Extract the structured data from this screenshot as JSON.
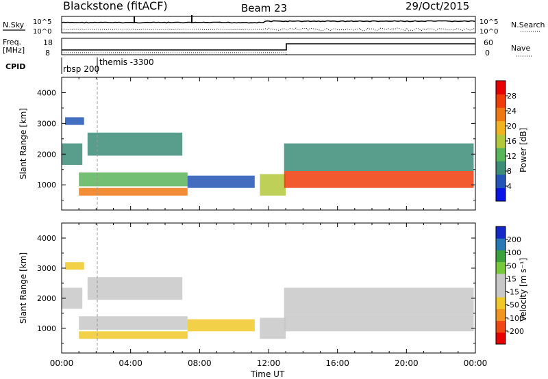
{
  "header": {
    "station": "Blackstone (fitACF)",
    "beam": "Beam 23",
    "date": "29/Oct/2015"
  },
  "noise_panel": {
    "left_label": "N.Sky",
    "left_ticks": [
      "10^5",
      "10^0"
    ],
    "right_label": "N.Search",
    "right_ticks": [
      "10^5",
      "10^0"
    ]
  },
  "freq_panel": {
    "left_label": "Freq.",
    "left_unit": "[MHz]",
    "left_ticks": [
      "18",
      "8"
    ],
    "right_label": "Nave",
    "right_ticks": [
      "60",
      "0"
    ]
  },
  "cpid": {
    "label": "CPID",
    "items": [
      "rbsp 200",
      "themis -3300"
    ]
  },
  "x_axis": {
    "label": "Time UT",
    "ticks": [
      "00:00",
      "04:00",
      "08:00",
      "12:00",
      "16:00",
      "20:00",
      "00:00"
    ]
  },
  "colors": {
    "power": [
      "#0a14e6",
      "#2255b4",
      "#3c8c78",
      "#5ab45a",
      "#b4c83c",
      "#f0b41e",
      "#f07814",
      "#f03c0a",
      "#e60000"
    ],
    "velocity": [
      "#e60000",
      "#f04614",
      "#f0961e",
      "#f0c828",
      "#c8c8c8",
      "#c8c8c8",
      "#78c83c",
      "#3ca03c",
      "#2878b4",
      "#1428c8"
    ]
  },
  "chart_data": [
    {
      "type": "heatmap",
      "quantity": "Power",
      "ylabel": "Slant Range [km]",
      "xlabel": "Time UT",
      "x_range_hours": [
        0,
        24
      ],
      "ylim": [
        180,
        4500
      ],
      "y_ticks": [
        "4000",
        "3000",
        "2000",
        "1000"
      ],
      "colorbar": {
        "label": "Power [dB]",
        "ticks": [
          "28",
          "24",
          "20",
          "16",
          "12",
          "8",
          "4"
        ],
        "range": [
          0,
          30
        ]
      },
      "bands": [
        {
          "t0": 0.0,
          "t1": 1.2,
          "r0": 1650,
          "r1": 2350,
          "value": 9
        },
        {
          "t0": 0.2,
          "t1": 1.3,
          "r0": 2950,
          "r1": 3200,
          "value": 6
        },
        {
          "t0": 1.0,
          "t1": 7.3,
          "r0": 650,
          "r1": 900,
          "value": 23
        },
        {
          "t0": 1.0,
          "t1": 7.3,
          "r0": 950,
          "r1": 1400,
          "value": 13
        },
        {
          "t0": 1.5,
          "t1": 7.0,
          "r0": 1950,
          "r1": 2700,
          "value": 7
        },
        {
          "t0": 7.3,
          "t1": 11.2,
          "r0": 900,
          "r1": 1300,
          "value": 6
        },
        {
          "t0": 11.5,
          "t1": 13.0,
          "r0": 650,
          "r1": 1350,
          "value": 14
        },
        {
          "t0": 12.9,
          "t1": 23.9,
          "r0": 900,
          "r1": 1450,
          "value": 26
        },
        {
          "t0": 12.9,
          "t1": 23.9,
          "r0": 1450,
          "r1": 2350,
          "value": 9
        }
      ]
    },
    {
      "type": "heatmap",
      "quantity": "Velocity",
      "ylabel": "Slant Range [km]",
      "xlabel": "Time UT",
      "x_range_hours": [
        0,
        24
      ],
      "ylim": [
        180,
        4500
      ],
      "y_ticks": [
        "4000",
        "3000",
        "2000",
        "1000"
      ],
      "colorbar": {
        "label": "Velocity [m s⁻¹]",
        "ticks": [
          "200",
          "100",
          "50",
          "15",
          "-15",
          "-50",
          "-100",
          "-200"
        ],
        "range": [
          -250,
          250
        ]
      },
      "bands": [
        {
          "t0": 0.0,
          "t1": 1.2,
          "r0": 1650,
          "r1": 2350,
          "value": 0
        },
        {
          "t0": 0.2,
          "t1": 1.3,
          "r0": 2950,
          "r1": 3200,
          "value": -75
        },
        {
          "t0": 1.0,
          "t1": 7.3,
          "r0": 650,
          "r1": 900,
          "value": -60
        },
        {
          "t0": 1.0,
          "t1": 7.3,
          "r0": 950,
          "r1": 1400,
          "value": -40
        },
        {
          "t0": 1.5,
          "t1": 7.0,
          "r0": 1950,
          "r1": 2700,
          "value": 0
        },
        {
          "t0": 7.3,
          "t1": 11.2,
          "r0": 900,
          "r1": 1300,
          "value": -55
        },
        {
          "t0": 11.5,
          "t1": 13.0,
          "r0": 650,
          "r1": 1350,
          "value": 30
        },
        {
          "t0": 12.9,
          "t1": 23.9,
          "r0": 900,
          "r1": 1450,
          "value": 0
        },
        {
          "t0": 12.9,
          "t1": 23.9,
          "r0": 1450,
          "r1": 2350,
          "value": 0
        }
      ]
    }
  ]
}
